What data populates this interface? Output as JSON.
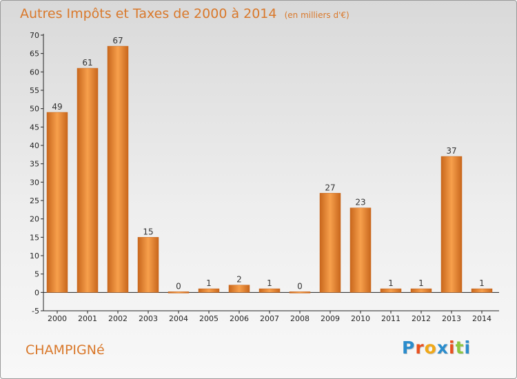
{
  "header": {
    "title": "Autres Impôts et Taxes de 2000 à 2014",
    "unit": "(en milliers d'€)"
  },
  "footer": {
    "place": "CHAMPIGNé",
    "logo_text": "Proxiti",
    "logo_colors": [
      "#2a8ccc",
      "#e8501e",
      "#f0a818",
      "#2a8ccc",
      "#e8501e",
      "#8dc63f",
      "#2a8ccc"
    ]
  },
  "chart_data": {
    "type": "bar",
    "title": "Autres Impôts et Taxes de 2000 à 2014",
    "xlabel": "",
    "ylabel": "",
    "categories": [
      "2000",
      "2001",
      "2002",
      "2003",
      "2004",
      "2005",
      "2006",
      "2007",
      "2008",
      "2009",
      "2010",
      "2011",
      "2012",
      "2013",
      "2014"
    ],
    "values": [
      49,
      61,
      67,
      15,
      0,
      1,
      2,
      1,
      0,
      27,
      23,
      1,
      1,
      37,
      1
    ],
    "ylim": [
      -5,
      70
    ],
    "yticks": [
      -5,
      0,
      5,
      10,
      15,
      20,
      25,
      30,
      35,
      40,
      45,
      50,
      55,
      60,
      65,
      70
    ],
    "grid": false,
    "bar_color": "#f0903c",
    "bar_color_dark": "#c8661c"
  }
}
